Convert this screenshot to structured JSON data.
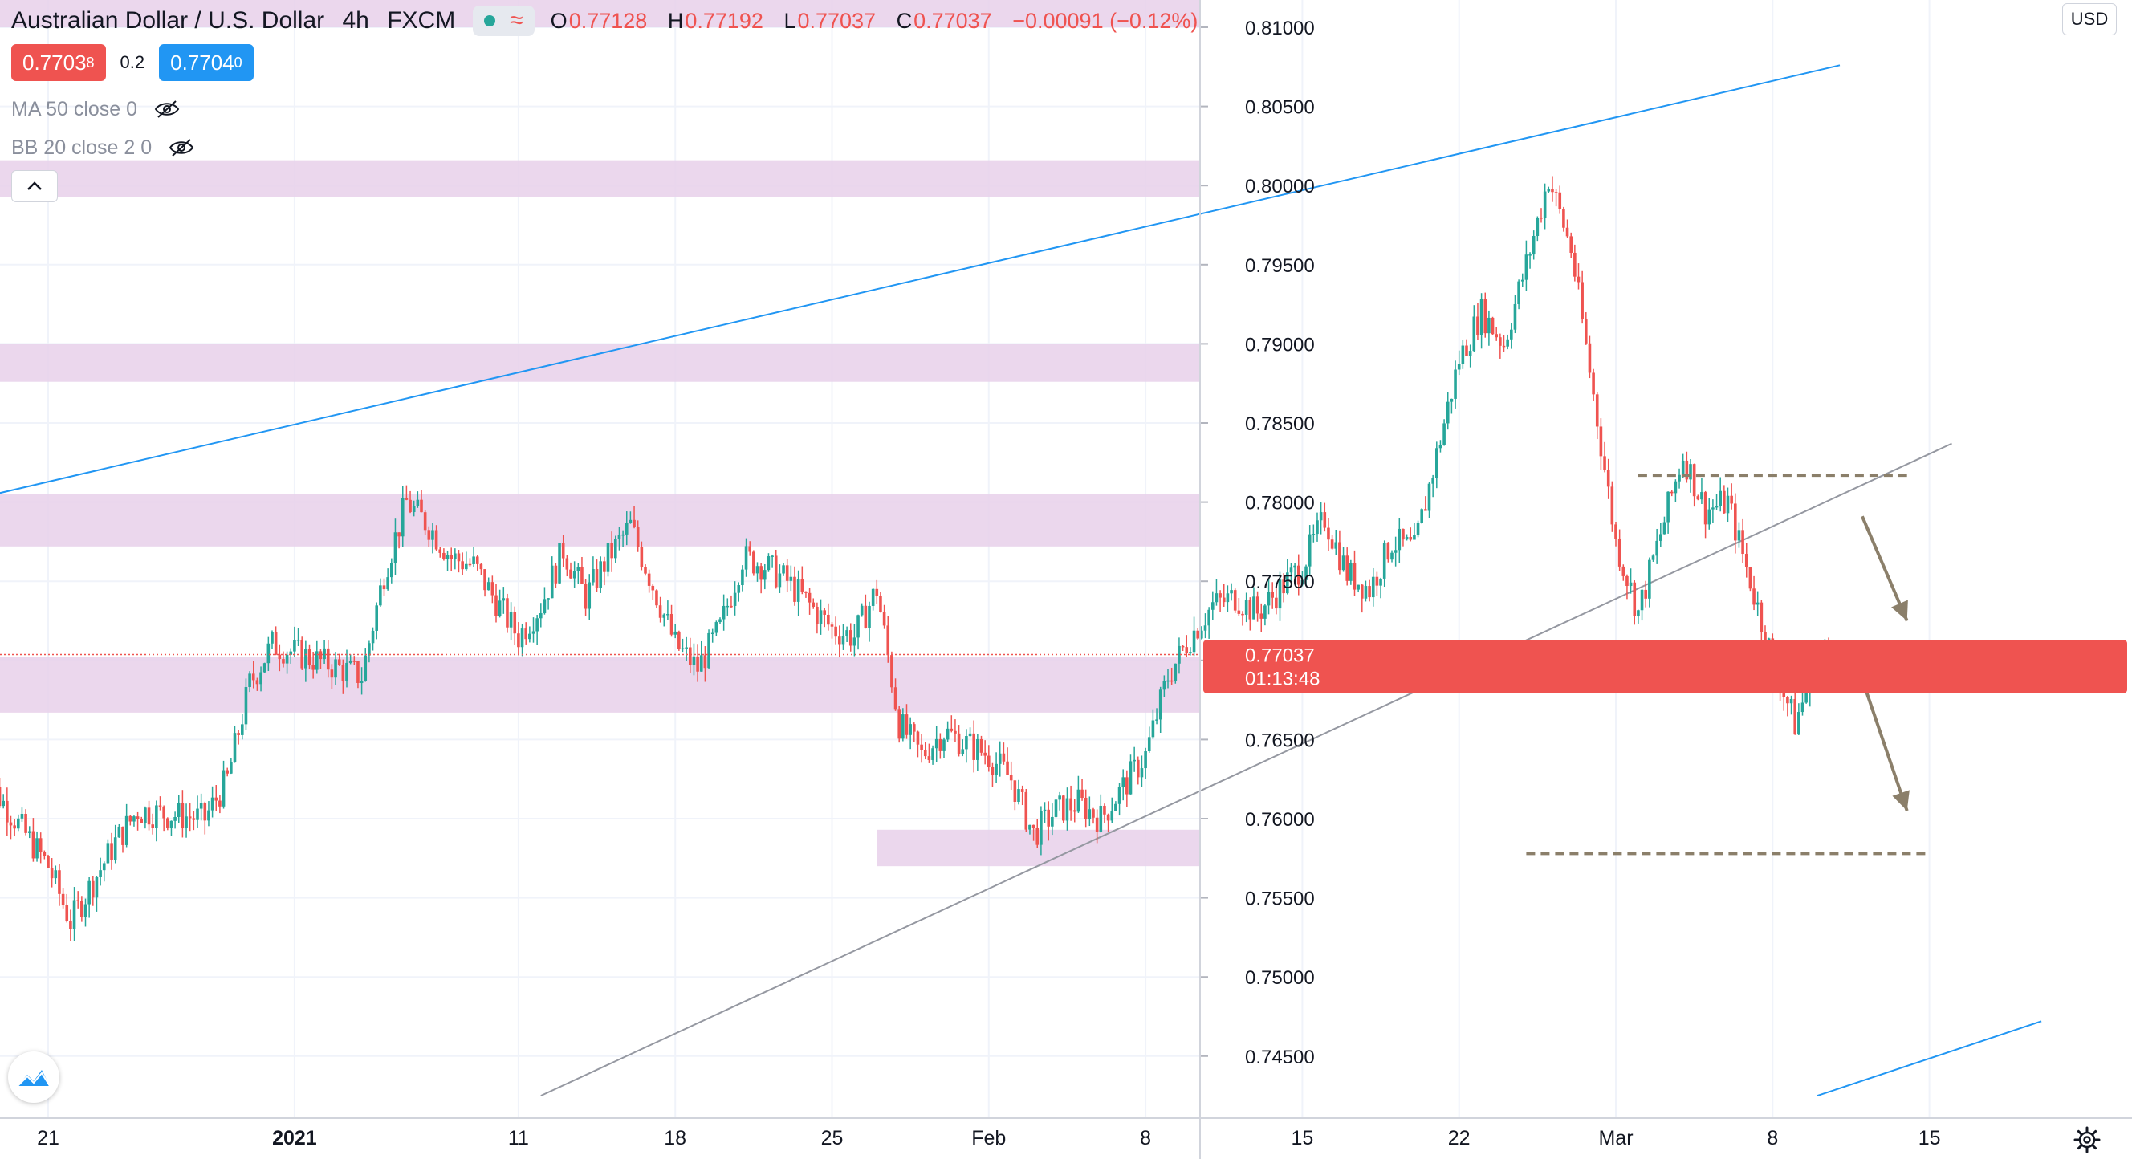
{
  "header": {
    "symbol_title": "Australian Dollar / U.S. Dollar",
    "interval": "4h",
    "source": "FXCM",
    "ohlc": {
      "open_label": "O",
      "open": "0.77128",
      "high_label": "H",
      "high": "0.77192",
      "low_label": "L",
      "low": "0.77037",
      "close_label": "C",
      "close": "0.77037",
      "change": "−0.00091 (−0.12%)"
    },
    "sell_price_main": "0.7703",
    "sell_price_sup": "8",
    "spread": "0.2",
    "buy_price_main": "0.7704",
    "buy_price_sup": "0"
  },
  "indicators": [
    {
      "label": "MA 50 close 0",
      "icon": "eye-crossed-icon"
    },
    {
      "label": "BB 20 close 2 0",
      "icon": "eye-crossed-icon"
    }
  ],
  "price_axis": {
    "currency": "USD",
    "ticks": [
      "0.81000",
      "0.80500",
      "0.80000",
      "0.79500",
      "0.79000",
      "0.78500",
      "0.78000",
      "0.77500",
      "0.77000",
      "0.76500",
      "0.76000",
      "0.75500",
      "0.75000",
      "0.74500"
    ],
    "last_price": "0.77037",
    "countdown": "01:13:48"
  },
  "time_axis": {
    "ticks": [
      "21",
      "2021",
      "11",
      "18",
      "25",
      "Feb",
      "8",
      "15",
      "22",
      "Mar",
      "8",
      "15"
    ]
  },
  "colors": {
    "up": "#26a69a",
    "down": "#ef5350",
    "zone": "#e8d0ea",
    "channel": "#2196f3",
    "trendline": "#9598a1",
    "annotation": "#8b7f6a"
  },
  "chart_data": {
    "type": "candlestick",
    "title": "Australian Dollar / U.S. Dollar",
    "interval": "4h",
    "ylim": [
      0.7425,
      0.812
    ],
    "x_labels": [
      {
        "label": "21",
        "date": "2020-12-21"
      },
      {
        "label": "2021",
        "date": "2021-01-01"
      },
      {
        "label": "11",
        "date": "2021-01-11"
      },
      {
        "label": "18",
        "date": "2021-01-18"
      },
      {
        "label": "25",
        "date": "2021-01-25"
      },
      {
        "label": "Feb",
        "date": "2021-02-01"
      },
      {
        "label": "8",
        "date": "2021-02-08"
      },
      {
        "label": "15",
        "date": "2021-02-15"
      },
      {
        "label": "22",
        "date": "2021-02-22"
      },
      {
        "label": "Mar",
        "date": "2021-03-01"
      },
      {
        "label": "8",
        "date": "2021-03-08"
      },
      {
        "label": "15",
        "date": "2021-03-15"
      }
    ],
    "close_path": [
      [
        "2020-12-18",
        0.763
      ],
      [
        "2020-12-21",
        0.757
      ],
      [
        "2020-12-22",
        0.7535
      ],
      [
        "2020-12-23",
        0.756
      ],
      [
        "2020-12-24",
        0.7585
      ],
      [
        "2020-12-25",
        0.7605
      ],
      [
        "2020-12-28",
        0.76
      ],
      [
        "2020-12-29",
        0.7625
      ],
      [
        "2020-12-30",
        0.7685
      ],
      [
        "2020-12-31",
        0.771
      ],
      [
        "2021-01-01",
        0.7705
      ],
      [
        "2021-01-04",
        0.769
      ],
      [
        "2021-01-05",
        0.7755
      ],
      [
        "2021-01-06",
        0.78
      ],
      [
        "2021-01-07",
        0.7785
      ],
      [
        "2021-01-08",
        0.7765
      ],
      [
        "2021-01-09",
        0.776
      ],
      [
        "2021-01-11",
        0.7715
      ],
      [
        "2021-01-12",
        0.7735
      ],
      [
        "2021-01-13",
        0.777
      ],
      [
        "2021-01-14",
        0.774
      ],
      [
        "2021-01-15",
        0.7765
      ],
      [
        "2021-01-16",
        0.7785
      ],
      [
        "2021-01-18",
        0.771
      ],
      [
        "2021-01-19",
        0.7695
      ],
      [
        "2021-01-20",
        0.772
      ],
      [
        "2021-01-21",
        0.7765
      ],
      [
        "2021-01-22",
        0.776
      ],
      [
        "2021-01-23",
        0.775
      ],
      [
        "2021-01-25",
        0.772
      ],
      [
        "2021-01-26",
        0.7715
      ],
      [
        "2021-01-27",
        0.7745
      ],
      [
        "2021-01-28",
        0.766
      ],
      [
        "2021-01-29",
        0.764
      ],
      [
        "2021-01-30",
        0.7655
      ],
      [
        "2021-02-01",
        0.764
      ],
      [
        "2021-02-02",
        0.7625
      ],
      [
        "2021-02-03",
        0.759
      ],
      [
        "2021-02-04",
        0.7605
      ],
      [
        "2021-02-05",
        0.761
      ],
      [
        "2021-02-06",
        0.76
      ],
      [
        "2021-02-08",
        0.764
      ],
      [
        "2021-02-09",
        0.769
      ],
      [
        "2021-02-10",
        0.7715
      ],
      [
        "2021-02-11",
        0.7735
      ],
      [
        "2021-02-12",
        0.774
      ],
      [
        "2021-02-13",
        0.773
      ],
      [
        "2021-02-15",
        0.776
      ],
      [
        "2021-02-16",
        0.779
      ],
      [
        "2021-02-17",
        0.7755
      ],
      [
        "2021-02-18",
        0.7745
      ],
      [
        "2021-02-19",
        0.7775
      ],
      [
        "2021-02-20",
        0.777
      ],
      [
        "2021-02-22",
        0.789
      ],
      [
        "2021-02-23",
        0.792
      ],
      [
        "2021-02-24",
        0.79
      ],
      [
        "2021-02-25",
        0.795
      ],
      [
        "2021-02-26",
        0.8005
      ],
      [
        "2021-02-27",
        0.796
      ],
      [
        "2021-03-01",
        0.7775
      ],
      [
        "2021-03-02",
        0.773
      ],
      [
        "2021-03-03",
        0.778
      ],
      [
        "2021-03-04",
        0.783
      ],
      [
        "2021-03-05",
        0.7795
      ],
      [
        "2021-03-06",
        0.78
      ],
      [
        "2021-03-08",
        0.77
      ],
      [
        "2021-03-09",
        0.766
      ],
      [
        "2021-03-10",
        0.77
      ],
      [
        "2021-03-11",
        0.771
      ]
    ],
    "approx_range": {
      "high": 0.8007,
      "low": 0.746
    },
    "horizontal_zones": [
      {
        "from": 0.81,
        "to": 0.8125
      },
      {
        "from": 0.7993,
        "to": 0.8016
      },
      {
        "from": 0.7876,
        "to": 0.79
      },
      {
        "from": 0.7772,
        "to": 0.7805
      },
      {
        "from": 0.7667,
        "to": 0.7702
      },
      {
        "from": 0.757,
        "to": 0.7593,
        "start": "2021-01-27"
      }
    ],
    "trendlines": [
      {
        "style": "channel",
        "from": [
          "2020-12-18",
          0.7803
        ],
        "to": [
          "2021-03-11",
          0.8076
        ]
      },
      {
        "style": "channel",
        "from": [
          "2021-03-10",
          0.7425
        ],
        "to": [
          "2021-03-20",
          0.7472
        ]
      },
      {
        "style": "trend",
        "from": [
          "2021-01-12",
          0.7425
        ],
        "to": [
          "2021-03-16",
          0.7837
        ]
      }
    ],
    "dashed_levels": [
      {
        "value": 0.7817,
        "from": "2021-03-02",
        "to": "2021-03-14"
      },
      {
        "value": 0.7707,
        "from": "2021-02-28",
        "to": "2021-03-15"
      },
      {
        "value": 0.7578,
        "from": "2021-02-25",
        "to": "2021-03-15"
      }
    ],
    "arrows": [
      {
        "from": [
          "2021-03-12",
          0.7791
        ],
        "to": [
          "2021-03-14",
          0.7725
        ]
      },
      {
        "from": [
          "2021-03-12",
          0.7688
        ],
        "to": [
          "2021-03-14",
          0.7605
        ]
      }
    ]
  }
}
